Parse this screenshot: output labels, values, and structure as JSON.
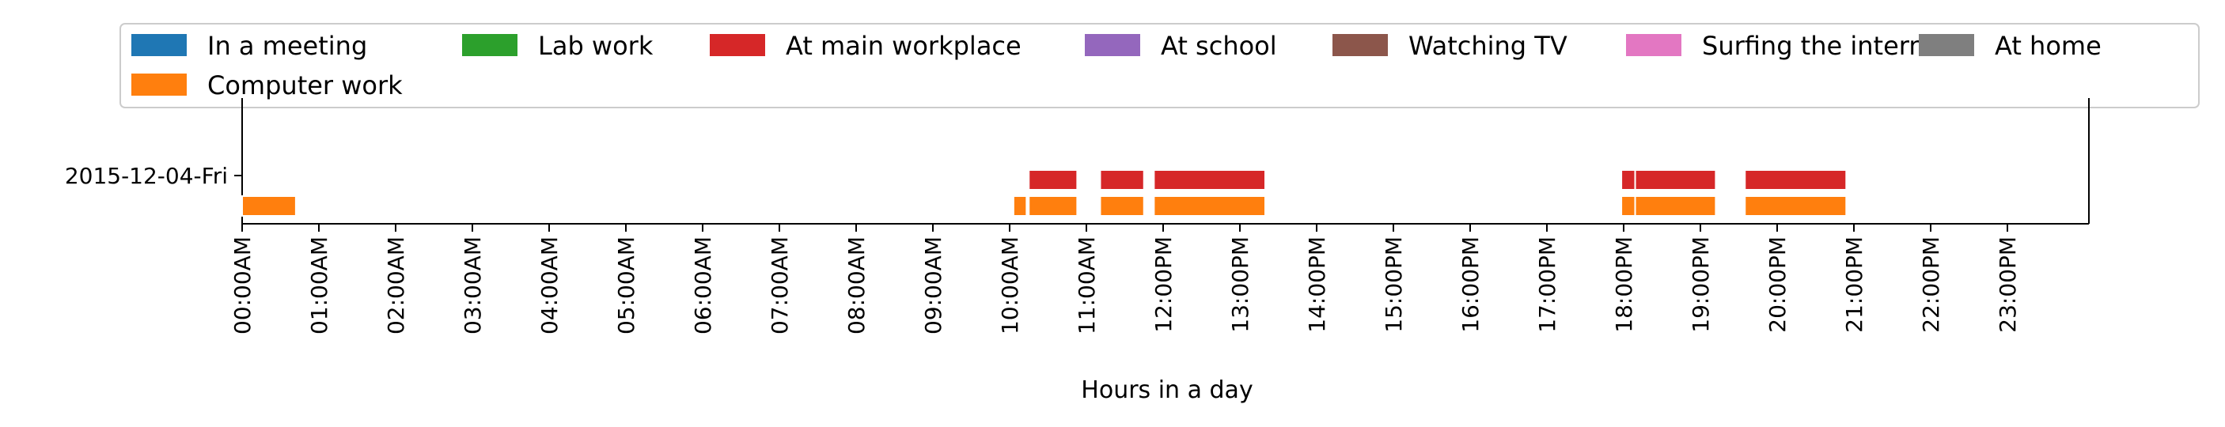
{
  "chart_data": {
    "type": "timeline",
    "title": "",
    "xlabel": "Hours in a day",
    "ylabel": "",
    "xlim_hours": [
      0,
      24
    ],
    "grid": false,
    "legend_position": "top",
    "day_label": "2015-12-04-Fri",
    "x_tick_labels": [
      "00:00AM",
      "01:00AM",
      "02:00AM",
      "03:00AM",
      "04:00AM",
      "05:00AM",
      "06:00AM",
      "07:00AM",
      "08:00AM",
      "09:00AM",
      "10:00AM",
      "11:00AM",
      "12:00PM",
      "13:00PM",
      "14:00PM",
      "15:00PM",
      "16:00PM",
      "17:00PM",
      "18:00PM",
      "19:00PM",
      "20:00PM",
      "21:00PM",
      "22:00PM",
      "23:00PM"
    ],
    "legend": [
      {
        "name": "In a meeting",
        "color": "#1f77b4"
      },
      {
        "name": "Lab work",
        "color": "#2ca02c"
      },
      {
        "name": "At main workplace",
        "color": "#d62728"
      },
      {
        "name": "At school",
        "color": "#9467bd"
      },
      {
        "name": "Watching TV",
        "color": "#8c564b"
      },
      {
        "name": "Surfing the internet",
        "color": "#e377c2"
      },
      {
        "name": "At home",
        "color": "#7f7f7f"
      },
      {
        "name": "Computer work",
        "color": "#ff7f0e"
      }
    ],
    "series": [
      {
        "name": "At main workplace",
        "color": "#d62728",
        "row": 1,
        "intervals": [
          [
            10.25,
            10.88
          ],
          [
            11.18,
            11.75
          ],
          [
            11.88,
            13.33
          ],
          [
            17.97,
            18.15
          ],
          [
            18.15,
            19.2
          ],
          [
            19.58,
            20.9
          ]
        ]
      },
      {
        "name": "Computer work",
        "color": "#ff7f0e",
        "row": 0,
        "intervals": [
          [
            0.0,
            0.7
          ],
          [
            10.05,
            10.22
          ],
          [
            10.25,
            10.88
          ],
          [
            11.18,
            11.75
          ],
          [
            11.88,
            13.33
          ],
          [
            17.97,
            18.15
          ],
          [
            18.15,
            19.2
          ],
          [
            19.58,
            20.9
          ]
        ]
      }
    ]
  }
}
